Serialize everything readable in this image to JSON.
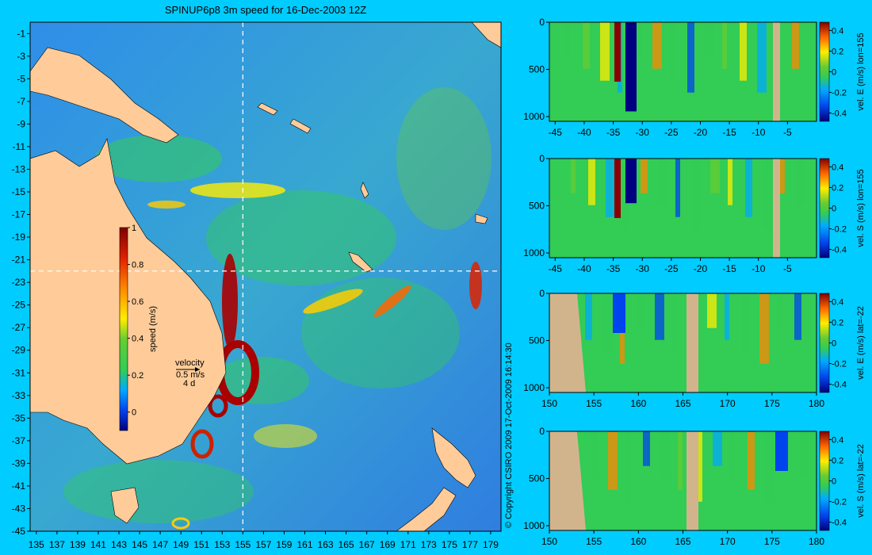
{
  "map": {
    "title": "SPINUP6p8 3m speed for 16-Dec-2003 12Z",
    "lon_ticks": [
      "135",
      "137",
      "139",
      "141",
      "143",
      "145",
      "147",
      "149",
      "151",
      "153",
      "155",
      "157",
      "159",
      "161",
      "163",
      "165",
      "167",
      "169",
      "171",
      "173",
      "175",
      "177",
      "179"
    ],
    "lat_ticks": [
      "-1",
      "-3",
      "-5",
      "-7",
      "-9",
      "-11",
      "-13",
      "-15",
      "-17",
      "-19",
      "-21",
      "-23",
      "-25",
      "-27",
      "-29",
      "-31",
      "-33",
      "-35",
      "-37",
      "-39",
      "-41",
      "-43",
      "-45"
    ],
    "section_lon": 155,
    "section_lat": -22,
    "colorbar": {
      "label": "speed (m/s)",
      "ticks": [
        "1",
        "0.8",
        "0.6",
        "0.4",
        "0.2",
        "0"
      ],
      "range": [
        -0.1,
        1.0
      ]
    },
    "vector_key": {
      "title": "velocity",
      "speed": "0.5 m/s",
      "duration": "4 d"
    },
    "copyright": "© Copyright CSIRO 2009   17-Oct-2009 16:14:30"
  },
  "colors": {
    "background": "#00ccff",
    "land": "#ffcc99",
    "section_land": "#d2b48c",
    "ocean_low": "#3388ee",
    "ocean_mid": "#33cc55",
    "ocean_high": "#8b0000"
  },
  "panels": [
    {
      "label": "vel. E (m/s) lon=155",
      "x_ticks": [
        "-45",
        "-40",
        "-35",
        "-30",
        "-25",
        "-20",
        "-15",
        "-10",
        "-5"
      ],
      "y_ticks": [
        "0",
        "500",
        "1000"
      ],
      "cb_ticks": [
        "0.4",
        "0.2",
        "0",
        "-0.2",
        "-0.4"
      ]
    },
    {
      "label": "vel. S (m/s) lon=155",
      "x_ticks": [
        "-45",
        "-40",
        "-35",
        "-30",
        "-25",
        "-20",
        "-15",
        "-10",
        "-5"
      ],
      "y_ticks": [
        "0",
        "500",
        "1000"
      ],
      "cb_ticks": [
        "0.4",
        "0.2",
        "0",
        "-0.2",
        "-0.4"
      ]
    },
    {
      "label": "vel. E (m/s) lat=-22",
      "x_ticks": [
        "150",
        "155",
        "160",
        "165",
        "170",
        "175",
        "180"
      ],
      "y_ticks": [
        "0",
        "500",
        "1000"
      ],
      "cb_ticks": [
        "0.4",
        "0.2",
        "0",
        "-0.2",
        "-0.4"
      ]
    },
    {
      "label": "vel. S (m/s) lat=-22",
      "x_ticks": [
        "150",
        "155",
        "160",
        "165",
        "170",
        "175",
        "180"
      ],
      "y_ticks": [
        "0",
        "500",
        "1000"
      ],
      "cb_ticks": [
        "0.4",
        "0.2",
        "0",
        "-0.2",
        "-0.4"
      ]
    }
  ]
}
